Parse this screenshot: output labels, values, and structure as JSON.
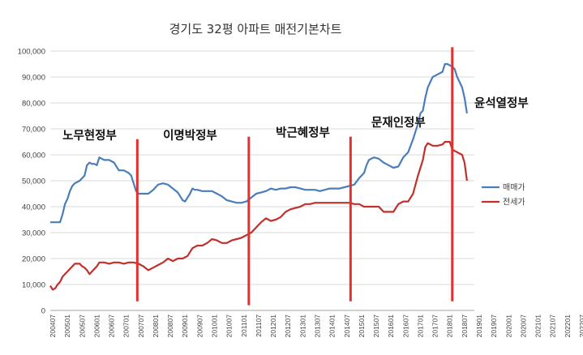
{
  "chart_data": {
    "type": "line",
    "title": "경기도 32평 아파트 매전기본차트",
    "xlabel": "",
    "ylabel": "",
    "ylim": [
      0,
      100000
    ],
    "yticks": [
      "0",
      "10,000",
      "20,000",
      "30,000",
      "40,000",
      "50,000",
      "60,000",
      "70,000",
      "80,000",
      "90,000",
      "100,000"
    ],
    "xticks": [
      "200407",
      "200501",
      "200507",
      "200601",
      "200607",
      "200701",
      "200707",
      "200801",
      "200807",
      "200901",
      "200907",
      "201001",
      "201007",
      "201101",
      "201107",
      "201201",
      "201207",
      "201301",
      "201307",
      "201401",
      "201407",
      "201501",
      "201507",
      "201601",
      "201607",
      "201701",
      "201707",
      "201801",
      "201807",
      "201901",
      "201907",
      "202001",
      "202007",
      "202101",
      "202107",
      "202201",
      "202207"
    ],
    "grid": "horizontal",
    "legend_position": "right",
    "series": [
      {
        "name": "매매가",
        "color": "#4a7ebb",
        "points": [
          [
            0,
            34000
          ],
          [
            2,
            34000
          ],
          [
            4,
            34000
          ],
          [
            5,
            37000
          ],
          [
            6,
            41000
          ],
          [
            7,
            43000
          ],
          [
            8,
            46000
          ],
          [
            9,
            48000
          ],
          [
            10,
            49000
          ],
          [
            12,
            50000
          ],
          [
            13,
            51000
          ],
          [
            14,
            52000
          ],
          [
            15,
            56000
          ],
          [
            16,
            57000
          ],
          [
            17,
            56500
          ],
          [
            18,
            56500
          ],
          [
            19,
            56000
          ],
          [
            20,
            59000
          ],
          [
            21,
            58500
          ],
          [
            22,
            58000
          ],
          [
            23,
            58000
          ],
          [
            24,
            58000
          ],
          [
            25,
            57500
          ],
          [
            26,
            57000
          ],
          [
            27,
            55500
          ],
          [
            28,
            54000
          ],
          [
            29,
            54000
          ],
          [
            30,
            54000
          ],
          [
            31,
            53500
          ],
          [
            32,
            53000
          ],
          [
            33,
            52000
          ],
          [
            34,
            49000
          ],
          [
            35,
            46000
          ],
          [
            36,
            45000
          ],
          [
            38,
            45000
          ],
          [
            40,
            45000
          ],
          [
            42,
            46500
          ],
          [
            44,
            48500
          ],
          [
            46,
            49000
          ],
          [
            48,
            48500
          ],
          [
            50,
            47000
          ],
          [
            52,
            45500
          ],
          [
            53,
            44000
          ],
          [
            54,
            42500
          ],
          [
            55,
            42000
          ],
          [
            56,
            43500
          ],
          [
            57,
            45000
          ],
          [
            58,
            47000
          ],
          [
            59,
            46500
          ],
          [
            60,
            46500
          ],
          [
            62,
            46000
          ],
          [
            64,
            46000
          ],
          [
            66,
            46000
          ],
          [
            68,
            45000
          ],
          [
            70,
            44000
          ],
          [
            72,
            42500
          ],
          [
            74,
            42000
          ],
          [
            76,
            41500
          ],
          [
            78,
            41500
          ],
          [
            80,
            42000
          ],
          [
            82,
            43500
          ],
          [
            84,
            45000
          ],
          [
            86,
            45500
          ],
          [
            88,
            46000
          ],
          [
            90,
            47000
          ],
          [
            92,
            46500
          ],
          [
            94,
            47000
          ],
          [
            96,
            47000
          ],
          [
            98,
            47500
          ],
          [
            100,
            47500
          ],
          [
            102,
            47000
          ],
          [
            104,
            46500
          ],
          [
            106,
            46500
          ],
          [
            108,
            46500
          ],
          [
            110,
            46000
          ],
          [
            112,
            46500
          ],
          [
            114,
            47000
          ],
          [
            116,
            47000
          ],
          [
            118,
            47000
          ],
          [
            120,
            47500
          ],
          [
            122,
            48000
          ],
          [
            124,
            48500
          ],
          [
            126,
            51000
          ],
          [
            128,
            53000
          ],
          [
            129,
            56000
          ],
          [
            130,
            58000
          ],
          [
            132,
            59000
          ],
          [
            134,
            58500
          ],
          [
            136,
            57000
          ],
          [
            138,
            56000
          ],
          [
            140,
            55000
          ],
          [
            142,
            55500
          ],
          [
            144,
            59000
          ],
          [
            146,
            61000
          ],
          [
            148,
            66000
          ],
          [
            150,
            72000
          ],
          [
            151,
            76000
          ],
          [
            152,
            77000
          ],
          [
            153,
            82000
          ],
          [
            154,
            86000
          ],
          [
            155,
            88000
          ],
          [
            156,
            90000
          ],
          [
            158,
            91000
          ],
          [
            160,
            92000
          ],
          [
            161,
            95000
          ],
          [
            162,
            95000
          ],
          [
            163,
            94500
          ],
          [
            164,
            94000
          ],
          [
            165,
            93000
          ],
          [
            166,
            90000
          ],
          [
            167,
            88000
          ],
          [
            168,
            86000
          ],
          [
            169,
            82000
          ],
          [
            170,
            76000
          ]
        ]
      },
      {
        "name": "전세가",
        "color": "#c0302c",
        "points": [
          [
            0,
            9500
          ],
          [
            1,
            8000
          ],
          [
            2,
            8500
          ],
          [
            3,
            10000
          ],
          [
            4,
            11000
          ],
          [
            5,
            13000
          ],
          [
            6,
            14000
          ],
          [
            7,
            15000
          ],
          [
            8,
            16000
          ],
          [
            9,
            17000
          ],
          [
            10,
            18000
          ],
          [
            12,
            18000
          ],
          [
            13,
            17000
          ],
          [
            14,
            16500
          ],
          [
            15,
            15500
          ],
          [
            16,
            14000
          ],
          [
            17,
            15000
          ],
          [
            18,
            16000
          ],
          [
            19,
            17000
          ],
          [
            20,
            18500
          ],
          [
            22,
            18500
          ],
          [
            24,
            18000
          ],
          [
            26,
            18500
          ],
          [
            28,
            18500
          ],
          [
            30,
            18000
          ],
          [
            32,
            18500
          ],
          [
            34,
            18500
          ],
          [
            36,
            18000
          ],
          [
            38,
            17000
          ],
          [
            40,
            15500
          ],
          [
            42,
            16500
          ],
          [
            44,
            17500
          ],
          [
            46,
            18500
          ],
          [
            48,
            20000
          ],
          [
            50,
            19000
          ],
          [
            52,
            20000
          ],
          [
            54,
            20000
          ],
          [
            56,
            21000
          ],
          [
            58,
            24000
          ],
          [
            60,
            25000
          ],
          [
            62,
            25000
          ],
          [
            64,
            26000
          ],
          [
            66,
            27500
          ],
          [
            68,
            27000
          ],
          [
            70,
            26000
          ],
          [
            72,
            26000
          ],
          [
            74,
            27000
          ],
          [
            76,
            27500
          ],
          [
            78,
            28000
          ],
          [
            80,
            29000
          ],
          [
            82,
            30000
          ],
          [
            84,
            32000
          ],
          [
            86,
            34000
          ],
          [
            88,
            35500
          ],
          [
            90,
            34500
          ],
          [
            92,
            35000
          ],
          [
            94,
            36000
          ],
          [
            96,
            38000
          ],
          [
            98,
            39000
          ],
          [
            100,
            39500
          ],
          [
            102,
            40000
          ],
          [
            104,
            41000
          ],
          [
            106,
            41000
          ],
          [
            108,
            41500
          ],
          [
            110,
            41500
          ],
          [
            112,
            41500
          ],
          [
            114,
            41500
          ],
          [
            116,
            41500
          ],
          [
            118,
            41500
          ],
          [
            120,
            41500
          ],
          [
            122,
            41500
          ],
          [
            124,
            41000
          ],
          [
            126,
            41000
          ],
          [
            128,
            40000
          ],
          [
            130,
            40000
          ],
          [
            132,
            40000
          ],
          [
            134,
            40000
          ],
          [
            136,
            38000
          ],
          [
            138,
            38000
          ],
          [
            140,
            38000
          ],
          [
            142,
            41000
          ],
          [
            144,
            42000
          ],
          [
            146,
            42000
          ],
          [
            148,
            45000
          ],
          [
            150,
            52000
          ],
          [
            151,
            55000
          ],
          [
            152,
            58000
          ],
          [
            153,
            63000
          ],
          [
            154,
            64500
          ],
          [
            156,
            63500
          ],
          [
            158,
            63500
          ],
          [
            160,
            64000
          ],
          [
            161,
            65000
          ],
          [
            163,
            65000
          ],
          [
            164,
            62000
          ],
          [
            166,
            61000
          ],
          [
            168,
            60000
          ],
          [
            169,
            57000
          ],
          [
            170,
            50000
          ]
        ]
      }
    ],
    "annotations": [
      {
        "text": "노무현정부",
        "x": 5,
        "y": 66000
      },
      {
        "text": "이명박정부",
        "x": 46,
        "y": 66000
      },
      {
        "text": "박근혜정부",
        "x": 92,
        "y": 67000
      },
      {
        "text": "문재인정부",
        "x": 131,
        "y": 71000
      },
      {
        "text": "윤석열정부",
        "x": 173,
        "y": 78500
      }
    ],
    "markers": [
      {
        "x": 35.5,
        "ymin": 3500,
        "ymax": 66000
      },
      {
        "x": 81,
        "ymin": 2000,
        "ymax": 67000
      },
      {
        "x": 122.5,
        "ymin": 3500,
        "ymax": 67000
      },
      {
        "x": 164,
        "ymin": 3500,
        "ymax": 101500
      }
    ],
    "marker_color": "#e03030"
  }
}
